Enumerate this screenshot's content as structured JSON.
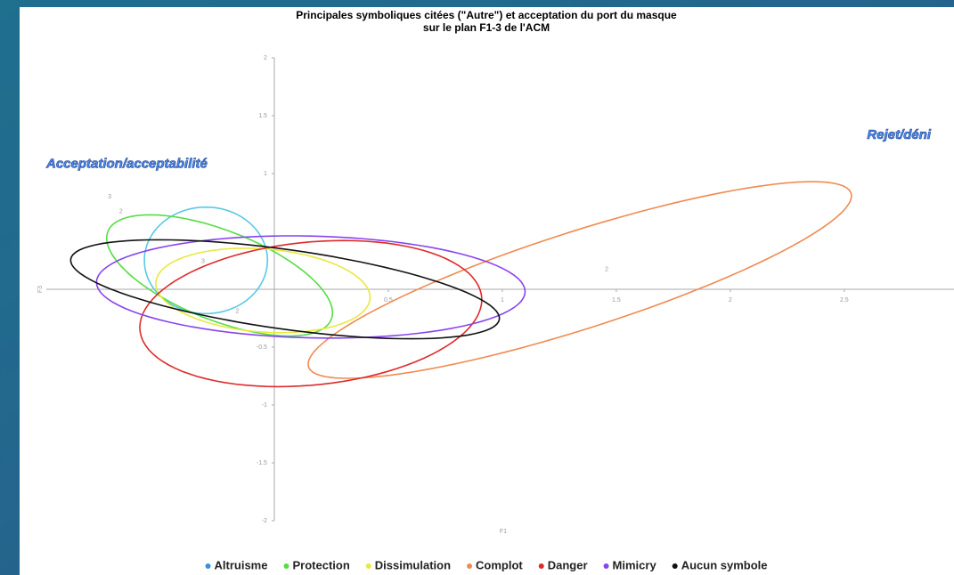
{
  "chart_data": {
    "type": "ellipse",
    "title": "Principales symboliques citées (\"Autre\") et acceptation du port du masque",
    "subtitle": "sur le plan F1-3 de l'ACM",
    "x_label": "F1",
    "y_label": "F3",
    "xlim": [
      -1,
      2.95
    ],
    "ylim": [
      -2,
      2
    ],
    "xticks": [
      0.5,
      1,
      1.5,
      2,
      2.5
    ],
    "yticks": [
      -2,
      -1.5,
      -1,
      -0.5,
      1,
      1.5,
      2
    ],
    "annotations": [
      {
        "text": "Acceptation/acceptabilité",
        "x": -1,
        "y": 1.08
      },
      {
        "text": "Rejet/déni",
        "x": 2.6,
        "y": 1.33
      }
    ],
    "point_labels": [
      {
        "text": "3",
        "x": -0.73,
        "y": 0.8
      },
      {
        "text": "2",
        "x": -0.68,
        "y": 0.67
      },
      {
        "text": "3",
        "x": -0.32,
        "y": 0.24
      },
      {
        "text": "2",
        "x": -0.17,
        "y": -0.19
      },
      {
        "text": "2",
        "x": 1.45,
        "y": 0.17
      }
    ],
    "series": [
      {
        "name": "Altruisme",
        "color": "#5bc8e6",
        "legend_color": "#3b8fe0",
        "center": [
          -0.3,
          0.25
        ],
        "u": [
          0.27,
          0
        ],
        "w": [
          0,
          -0.46
        ]
      },
      {
        "name": "Protection",
        "color": "#55dd44",
        "center": [
          -0.24,
          0.12
        ],
        "u": [
          0.49,
          -0.38
        ],
        "w": [
          -0.073,
          -0.36
        ]
      },
      {
        "name": "Dissimulation",
        "color": "#e8e840",
        "center": [
          -0.05,
          -0.01
        ],
        "u": [
          0.47,
          -0.06
        ],
        "w": [
          0,
          -0.36
        ]
      },
      {
        "name": "Complot",
        "color": "#f08a50",
        "center": [
          1.34,
          0.08
        ],
        "u": [
          1.19,
          0.75
        ],
        "w": [
          0.065,
          -0.4
        ]
      },
      {
        "name": "Danger",
        "color": "#dd2a2a",
        "center": [
          0.16,
          -0.21
        ],
        "u": [
          0.75,
          0.12
        ],
        "w": [
          0,
          -0.62
        ]
      },
      {
        "name": "Mimicry",
        "color": "#8844ee",
        "center": [
          0.16,
          0.02
        ],
        "u": [
          0.94,
          -0.04
        ],
        "w": [
          0,
          -0.44
        ]
      },
      {
        "name": "Aucun symbole",
        "color": "#111111",
        "center": [
          0.047,
          0
        ],
        "u": [
          0.94,
          -0.26
        ],
        "w": [
          -0.025,
          -0.34
        ]
      }
    ]
  }
}
